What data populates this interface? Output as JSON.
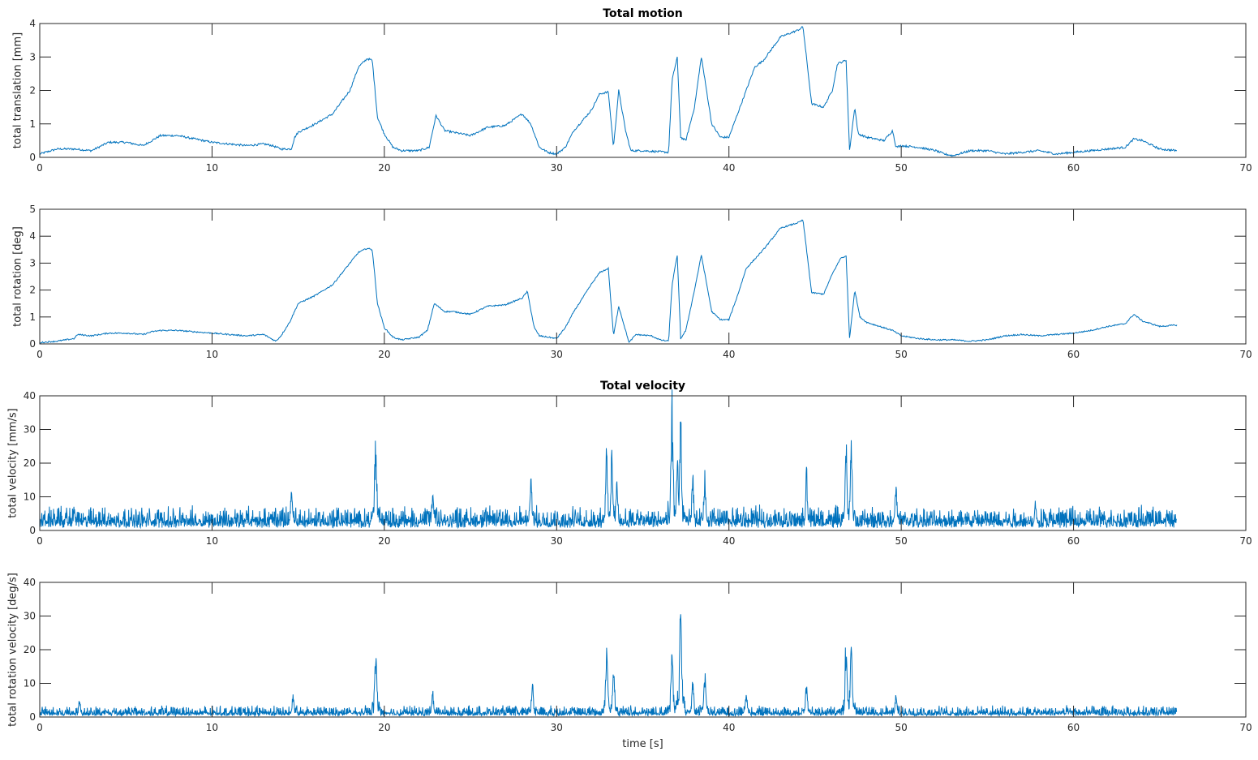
{
  "chart_data": [
    {
      "type": "line",
      "title": "Total motion",
      "xlabel": "",
      "ylabel": "total translation [mm]",
      "xlim": [
        0,
        70
      ],
      "ylim": [
        0,
        4
      ],
      "xticks": [
        0,
        10,
        20,
        30,
        40,
        50,
        60,
        70
      ],
      "yticks": [
        0,
        1,
        2,
        3,
        4
      ],
      "color": "#0072BD",
      "series": [
        {
          "name": "translation",
          "noise": 0.03,
          "x": [
            0,
            1,
            2,
            3,
            4,
            5,
            6,
            7,
            8,
            9,
            10,
            11,
            12,
            13,
            13.5,
            14,
            14.6,
            14.8,
            15,
            16,
            17,
            18,
            18.5,
            19,
            19.3,
            19.6,
            20,
            20.5,
            21,
            22,
            22.6,
            23,
            23.5,
            24,
            25,
            26,
            27,
            28,
            28.5,
            29,
            29.5,
            30,
            30.5,
            31,
            32,
            32.5,
            33,
            33.3,
            33.6,
            34,
            34.3,
            35,
            36.5,
            36.7,
            37,
            37.2,
            37.5,
            38,
            38.4,
            39,
            39.5,
            40,
            40.5,
            41,
            41.5,
            42,
            43,
            44,
            44.3,
            44.8,
            45.5,
            46,
            46.3,
            46.8,
            47,
            47.3,
            47.5,
            48,
            49,
            49.5,
            49.7,
            50,
            51,
            52,
            52.5,
            53,
            54,
            55,
            56,
            57,
            58,
            59,
            60,
            61,
            62,
            63,
            63.5,
            64,
            65,
            66
          ],
          "y": [
            0.1,
            0.25,
            0.25,
            0.2,
            0.45,
            0.45,
            0.35,
            0.65,
            0.65,
            0.55,
            0.45,
            0.4,
            0.35,
            0.4,
            0.35,
            0.25,
            0.25,
            0.6,
            0.75,
            1.0,
            1.3,
            2.0,
            2.7,
            2.95,
            2.9,
            1.2,
            0.7,
            0.3,
            0.2,
            0.2,
            0.3,
            1.25,
            0.8,
            0.75,
            0.65,
            0.9,
            0.95,
            1.3,
            1.0,
            0.3,
            0.15,
            0.1,
            0.3,
            0.8,
            1.4,
            1.9,
            1.95,
            0.3,
            2.0,
            0.8,
            0.2,
            0.2,
            0.15,
            2.3,
            3.0,
            0.6,
            0.5,
            1.5,
            3.0,
            1.0,
            0.6,
            0.6,
            1.3,
            2.0,
            2.7,
            2.9,
            3.6,
            3.8,
            3.9,
            1.6,
            1.5,
            2.0,
            2.8,
            2.9,
            0.2,
            1.5,
            0.7,
            0.6,
            0.5,
            0.8,
            0.3,
            0.35,
            0.3,
            0.2,
            0.1,
            0.05,
            0.2,
            0.2,
            0.1,
            0.15,
            0.2,
            0.1,
            0.15,
            0.2,
            0.25,
            0.3,
            0.55,
            0.5,
            0.25,
            0.2
          ]
        }
      ]
    },
    {
      "type": "line",
      "title": "",
      "xlabel": "",
      "ylabel": "total rotation [deg]",
      "xlim": [
        0,
        70
      ],
      "ylim": [
        0,
        5
      ],
      "xticks": [
        0,
        10,
        20,
        30,
        40,
        50,
        60,
        70
      ],
      "yticks": [
        0,
        1,
        2,
        3,
        4,
        5
      ],
      "color": "#0072BD",
      "series": [
        {
          "name": "rotation",
          "noise": 0.02,
          "x": [
            0,
            1,
            2,
            2.2,
            3,
            4,
            5,
            6,
            6.5,
            7,
            8,
            9,
            10,
            11,
            12,
            13,
            13.7,
            14,
            14.5,
            15,
            16,
            17,
            18,
            18.5,
            19,
            19.3,
            19.6,
            20,
            20.5,
            21,
            22,
            22.5,
            22.9,
            23.5,
            24,
            25,
            26,
            27,
            28,
            28.3,
            28.7,
            29,
            30,
            30.5,
            31,
            32,
            32.5,
            33,
            33.3,
            33.6,
            34,
            34.2,
            34.6,
            35.5,
            36,
            36.5,
            36.7,
            37,
            37.2,
            37.5,
            38,
            38.4,
            39,
            39.5,
            40,
            40.5,
            41,
            42,
            43,
            44,
            44.3,
            44.8,
            45.5,
            46,
            46.5,
            46.8,
            47,
            47.3,
            47.6,
            48,
            49,
            49.5,
            50,
            51,
            52,
            53,
            54,
            55,
            56,
            57,
            58,
            59,
            60,
            61,
            62,
            63,
            63.5,
            64,
            65,
            66
          ],
          "y": [
            0.05,
            0.1,
            0.2,
            0.35,
            0.3,
            0.4,
            0.4,
            0.35,
            0.45,
            0.5,
            0.5,
            0.45,
            0.4,
            0.35,
            0.3,
            0.35,
            0.1,
            0.3,
            0.8,
            1.5,
            1.8,
            2.2,
            3.0,
            3.4,
            3.55,
            3.5,
            1.5,
            0.6,
            0.25,
            0.15,
            0.25,
            0.5,
            1.5,
            1.2,
            1.2,
            1.1,
            1.4,
            1.45,
            1.7,
            1.95,
            0.6,
            0.3,
            0.2,
            0.6,
            1.2,
            2.2,
            2.65,
            2.8,
            0.3,
            1.4,
            0.5,
            0.05,
            0.35,
            0.3,
            0.15,
            0.1,
            2.2,
            3.3,
            0.2,
            0.5,
            2.0,
            3.3,
            1.2,
            0.9,
            0.9,
            1.8,
            2.8,
            3.5,
            4.3,
            4.5,
            4.6,
            1.9,
            1.85,
            2.6,
            3.2,
            3.25,
            0.2,
            2.0,
            1.0,
            0.8,
            0.6,
            0.5,
            0.3,
            0.2,
            0.15,
            0.15,
            0.1,
            0.15,
            0.3,
            0.35,
            0.3,
            0.35,
            0.4,
            0.5,
            0.65,
            0.75,
            1.1,
            0.85,
            0.65,
            0.7
          ]
        }
      ]
    },
    {
      "type": "line",
      "title": "Total velocity",
      "xlabel": "",
      "ylabel": "total velocity [mm/s]",
      "xlim": [
        0,
        70
      ],
      "ylim": [
        0,
        40
      ],
      "xticks": [
        0,
        10,
        20,
        30,
        40,
        50,
        60,
        70
      ],
      "yticks": [
        0,
        10,
        20,
        30,
        40
      ],
      "color": "#0072BD",
      "series": [
        {
          "name": "velocity",
          "x_end": 66,
          "baseline": 2.2,
          "noise": 1.6,
          "peaks_x": [
            2,
            14.6,
            19.5,
            22.8,
            28.5,
            32.9,
            33.2,
            33.5,
            36.7,
            37.0,
            37.2,
            37.9,
            38.6,
            44.5,
            46.8,
            47.1,
            49.7,
            57.8
          ],
          "peaks_y": [
            7,
            12,
            26,
            10.5,
            15,
            22,
            21,
            14,
            35,
            20,
            29,
            15,
            15,
            16,
            23,
            24,
            13,
            8
          ]
        }
      ]
    },
    {
      "type": "line",
      "title": "",
      "xlabel": "time [s]",
      "ylabel": "total rotation velocity [deg/s]",
      "xlim": [
        0,
        70
      ],
      "ylim": [
        0,
        40
      ],
      "xticks": [
        0,
        10,
        20,
        30,
        40,
        50,
        60,
        70
      ],
      "yticks": [
        0,
        10,
        20,
        30,
        40
      ],
      "color": "#0072BD",
      "series": [
        {
          "name": "rotation velocity",
          "x_end": 66,
          "baseline": 0.9,
          "noise": 0.8,
          "peaks_x": [
            2.3,
            14.7,
            19.5,
            22.8,
            28.6,
            32.9,
            33.3,
            36.7,
            37.2,
            37.9,
            38.6,
            41,
            44.5,
            46.8,
            47.1,
            49.7
          ],
          "peaks_y": [
            5,
            6,
            19,
            7,
            10,
            19,
            14,
            20,
            32,
            10,
            12,
            7,
            9,
            22,
            21,
            6
          ]
        }
      ]
    }
  ]
}
